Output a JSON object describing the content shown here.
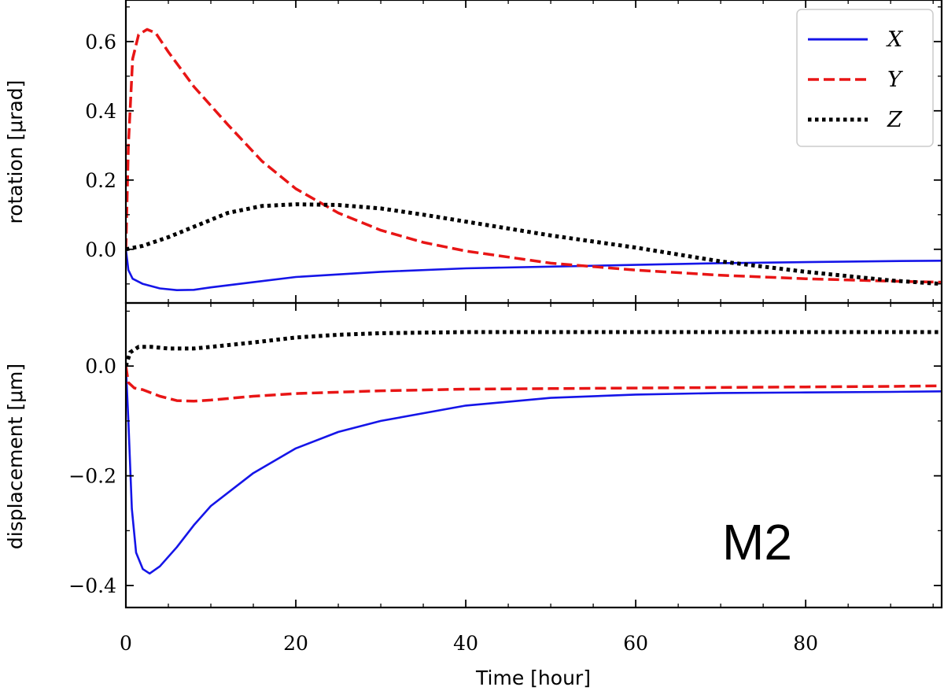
{
  "chart_data": {
    "type": "line",
    "annotation": "M2",
    "xlabel": "Time [hour]",
    "xlim": [
      0,
      96
    ],
    "x_ticks": [
      0,
      20,
      40,
      60,
      80
    ],
    "x_minor": 5,
    "legend": {
      "placement": "top-right",
      "panel": "top"
    },
    "colors": {
      "X": "#1515e8",
      "Y": "#e81515",
      "Z": "#000000"
    },
    "panels": [
      {
        "id": "rotation",
        "ylabel": "rotation [μrad]",
        "ylim": [
          -0.155,
          0.72
        ],
        "y_ticks": [
          0.0,
          0.2,
          0.4,
          0.6
        ],
        "y_tick_labels": [
          "0.0",
          "0.2",
          "0.4",
          "0.6"
        ],
        "y_minor": 0.1,
        "series": [
          {
            "name": "X",
            "style": "solid",
            "x": [
              0,
              0.3,
              0.8,
              2,
              4,
              6,
              8,
              10,
              15,
              20,
              30,
              40,
              50,
              60,
              70,
              80,
              90,
              96
            ],
            "y": [
              0,
              -0.06,
              -0.085,
              -0.1,
              -0.113,
              -0.118,
              -0.117,
              -0.11,
              -0.095,
              -0.08,
              -0.065,
              -0.055,
              -0.05,
              -0.045,
              -0.04,
              -0.037,
              -0.034,
              -0.033
            ]
          },
          {
            "name": "Y",
            "style": "dashed",
            "x": [
              0,
              0.3,
              0.8,
              1.5,
              2.5,
              3.5,
              5,
              8,
              12,
              16,
              20,
              25,
              30,
              35,
              40,
              50,
              60,
              70,
              80,
              90,
              96
            ],
            "y": [
              0,
              0.3,
              0.55,
              0.62,
              0.635,
              0.625,
              0.57,
              0.47,
              0.36,
              0.255,
              0.175,
              0.105,
              0.055,
              0.02,
              -0.005,
              -0.04,
              -0.06,
              -0.075,
              -0.085,
              -0.092,
              -0.095
            ]
          },
          {
            "name": "Z",
            "style": "dotted",
            "x": [
              0,
              2,
              5,
              8,
              12,
              16,
              20,
              25,
              30,
              35,
              40,
              50,
              60,
              70,
              80,
              90,
              96
            ],
            "y": [
              0,
              0.01,
              0.035,
              0.065,
              0.105,
              0.125,
              0.13,
              0.128,
              0.118,
              0.1,
              0.08,
              0.04,
              0.005,
              -0.035,
              -0.065,
              -0.09,
              -0.1
            ]
          }
        ]
      },
      {
        "id": "displacement",
        "ylabel": "displacement [μm]",
        "ylim": [
          -0.44,
          0.115
        ],
        "y_ticks": [
          -0.4,
          -0.2,
          0.0
        ],
        "y_tick_labels": [
          "−0.4",
          "−0.2",
          "0.0"
        ],
        "y_minor": 0.1,
        "series": [
          {
            "name": "X",
            "style": "solid",
            "x": [
              0,
              0.3,
              0.7,
              1.2,
              2,
              2.8,
              4,
              6,
              8,
              10,
              15,
              20,
              25,
              30,
              40,
              50,
              60,
              70,
              80,
              90,
              96
            ],
            "y": [
              0,
              -0.1,
              -0.26,
              -0.34,
              -0.37,
              -0.378,
              -0.365,
              -0.33,
              -0.29,
              -0.255,
              -0.195,
              -0.15,
              -0.12,
              -0.1,
              -0.072,
              -0.058,
              -0.052,
              -0.049,
              -0.048,
              -0.047,
              -0.046
            ]
          },
          {
            "name": "Y",
            "style": "dashed",
            "x": [
              0,
              0.3,
              1,
              2,
              4,
              6,
              8,
              10,
              15,
              20,
              30,
              40,
              50,
              60,
              70,
              80,
              90,
              96
            ],
            "y": [
              0,
              -0.03,
              -0.04,
              -0.043,
              -0.055,
              -0.063,
              -0.064,
              -0.062,
              -0.055,
              -0.05,
              -0.045,
              -0.042,
              -0.041,
              -0.04,
              -0.039,
              -0.038,
              -0.037,
              -0.036
            ]
          },
          {
            "name": "Z",
            "style": "dotted",
            "x": [
              0,
              0.5,
              1.5,
              3,
              5,
              8,
              10,
              15,
              20,
              25,
              30,
              40,
              50,
              60,
              70,
              80,
              90,
              96
            ],
            "y": [
              0,
              0.025,
              0.035,
              0.035,
              0.032,
              0.032,
              0.035,
              0.043,
              0.052,
              0.057,
              0.06,
              0.062,
              0.062,
              0.062,
              0.062,
              0.062,
              0.062,
              0.062
            ]
          }
        ]
      }
    ]
  }
}
